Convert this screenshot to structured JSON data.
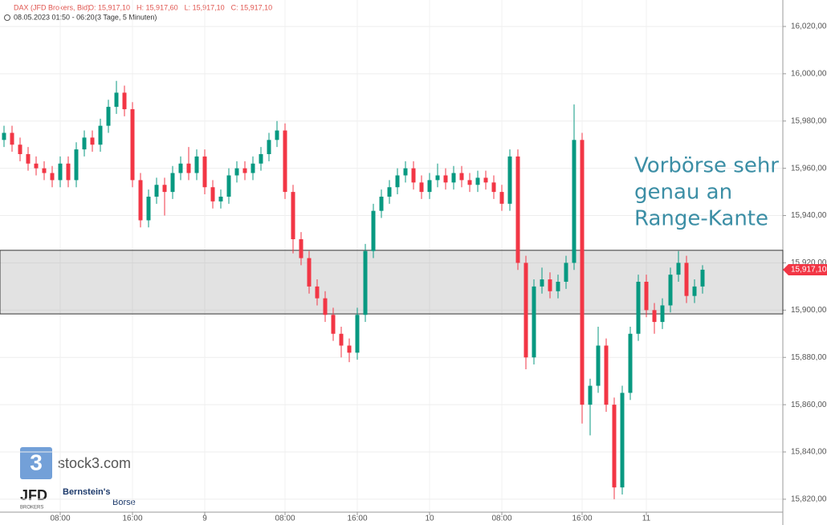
{
  "chart_data": {
    "type": "candlestick",
    "symbol": "DAX (JFD Brokers, Bid)",
    "ohlc_labels": [
      "O: 15,917,10",
      "H: 15,917,60",
      "L: 15,917,10",
      "C: 15,917,10"
    ],
    "range_text": "08.05.2023 01:50 - 06:20",
    "range_note": "(3 Tage, 5 Minuten)",
    "annotation": [
      "Vorbörse sehr",
      "genau an",
      "Range-Kante"
    ],
    "zone": {
      "low": 15898.4,
      "high": 15925.3
    },
    "last_price": {
      "value": 15917.1,
      "label": "15,917,10"
    },
    "up_color": "#089981",
    "down_color": "#f23645",
    "ylim": [
      15809.1,
      16031.2
    ],
    "yticks": [
      {
        "value": 15820,
        "label": "15,820,00"
      },
      {
        "value": 15840,
        "label": "15,840,00"
      },
      {
        "value": 15860,
        "label": "15,860,00"
      },
      {
        "value": 15880,
        "label": "15,880,00"
      },
      {
        "value": 15900,
        "label": "15,900,00"
      },
      {
        "value": 15920,
        "label": "15,920,00"
      },
      {
        "value": 15940,
        "label": "15,940,00"
      },
      {
        "value": 15960,
        "label": "15,960,00"
      },
      {
        "value": 15980,
        "label": "15,980,00"
      },
      {
        "value": 16000,
        "label": "16,000,00"
      },
      {
        "value": 16020,
        "label": "16,020,00"
      }
    ],
    "categories": [
      null,
      null,
      null,
      null,
      null,
      null,
      null,
      "08:00",
      null,
      null,
      null,
      null,
      null,
      null,
      null,
      null,
      "16:00",
      null,
      null,
      null,
      null,
      null,
      null,
      null,
      null,
      "9",
      null,
      null,
      null,
      null,
      null,
      null,
      null,
      null,
      null,
      "08:00",
      null,
      null,
      null,
      null,
      null,
      null,
      null,
      null,
      "16:00",
      null,
      null,
      null,
      null,
      null,
      null,
      null,
      null,
      "10",
      null,
      null,
      null,
      null,
      null,
      null,
      null,
      null,
      "08:00",
      null,
      null,
      null,
      null,
      null,
      null,
      null,
      null,
      null,
      "16:00",
      null,
      null,
      null,
      null,
      null,
      null,
      null,
      "11",
      null,
      null,
      null,
      null,
      null,
      null,
      null
    ],
    "open": [
      15972,
      15975,
      15970,
      15966,
      15962,
      15960,
      15958,
      15955,
      15962,
      15955,
      15968,
      15973,
      15970,
      15978,
      15986,
      15992,
      15985,
      15955,
      15938,
      15948,
      15953,
      15950,
      15958,
      15962,
      15958,
      15965,
      15952,
      15946,
      15948,
      15957,
      15960,
      15958,
      15962,
      15966,
      15972,
      15976,
      15950,
      15930,
      15922,
      15910,
      15905,
      15898,
      15890,
      15885,
      15882,
      15898,
      15925,
      15942,
      15948,
      15952,
      15957,
      15960,
      15954,
      15950,
      15955,
      15957,
      15954,
      15958,
      15955,
      15953,
      15956,
      15954,
      15950,
      15945,
      15965,
      15920,
      15880,
      15910,
      15913,
      15908,
      15912,
      15920,
      15972,
      15860,
      15868,
      15885,
      15860,
      15825,
      15865,
      15890,
      15912,
      15900,
      15895,
      15902,
      15915,
      15920,
      15906,
      15910
    ],
    "high": [
      15978,
      15978,
      15973,
      15969,
      15965,
      15963,
      15961,
      15965,
      15965,
      15971,
      15976,
      15976,
      15981,
      15989,
      15997,
      15995,
      15988,
      15958,
      15951,
      15956,
      15956,
      15961,
      15965,
      15969,
      15968,
      15968,
      15955,
      15951,
      15960,
      15963,
      15963,
      15965,
      15969,
      15975,
      15980,
      15979,
      15953,
      15933,
      15925,
      15913,
      15908,
      15901,
      15893,
      15888,
      15901,
      15928,
      15945,
      15951,
      15955,
      15960,
      15963,
      15963,
      15957,
      15958,
      15962,
      15960,
      15961,
      15961,
      15958,
      15959,
      15959,
      15957,
      15953,
      15968,
      15968,
      15923,
      15913,
      15918,
      15916,
      15915,
      15923,
      15987,
      15975,
      15871,
      15893,
      15888,
      15863,
      15868,
      15893,
      15915,
      15915,
      15903,
      15905,
      15918,
      15925,
      15923,
      15913,
      15919
    ],
    "low": [
      15969,
      15967,
      15963,
      15959,
      15957,
      15955,
      15952,
      15952,
      15952,
      15952,
      15965,
      15967,
      15967,
      15975,
      15983,
      15982,
      15952,
      15935,
      15935,
      15945,
      15940,
      15947,
      15955,
      15955,
      15955,
      15949,
      15943,
      15943,
      15945,
      15954,
      15955,
      15955,
      15959,
      15963,
      15969,
      15947,
      15924,
      15919,
      15907,
      15902,
      15895,
      15887,
      15880,
      15878,
      15879,
      15895,
      15922,
      15939,
      15945,
      15949,
      15954,
      15951,
      15947,
      15947,
      15952,
      15951,
      15951,
      15952,
      15950,
      15950,
      15951,
      15947,
      15942,
      15942,
      15917,
      15875,
      15877,
      15907,
      15905,
      15905,
      15909,
      15917,
      15852,
      15847,
      15865,
      15857,
      15820,
      15822,
      15862,
      15887,
      15897,
      15890,
      15892,
      15899,
      15912,
      15903,
      15903,
      15907
    ],
    "close": [
      15975,
      15970,
      15966,
      15962,
      15960,
      15958,
      15955,
      15962,
      15955,
      15968,
      15973,
      15970,
      15978,
      15986,
      15992,
      15985,
      15955,
      15938,
      15948,
      15953,
      15950,
      15958,
      15962,
      15958,
      15965,
      15952,
      15946,
      15948,
      15957,
      15960,
      15958,
      15962,
      15966,
      15972,
      15976,
      15950,
      15930,
      15922,
      15910,
      15905,
      15898,
      15890,
      15885,
      15882,
      15898,
      15925,
      15942,
      15948,
      15952,
      15957,
      15960,
      15954,
      15950,
      15955,
      15957,
      15954,
      15958,
      15955,
      15953,
      15956,
      15954,
      15950,
      15945,
      15965,
      15920,
      15880,
      15910,
      15913,
      15908,
      15912,
      15920,
      15972,
      15860,
      15868,
      15885,
      15860,
      15825,
      15865,
      15890,
      15912,
      15900,
      15895,
      15902,
      15915,
      15920,
      15906,
      15910,
      15917.1
    ]
  },
  "branding": {
    "site": "stock3.com",
    "site_icon": "3",
    "broker": "JFD",
    "broker_sub": "BROKERS",
    "partner": "Bernstein's",
    "partner_sub": "Börse"
  }
}
